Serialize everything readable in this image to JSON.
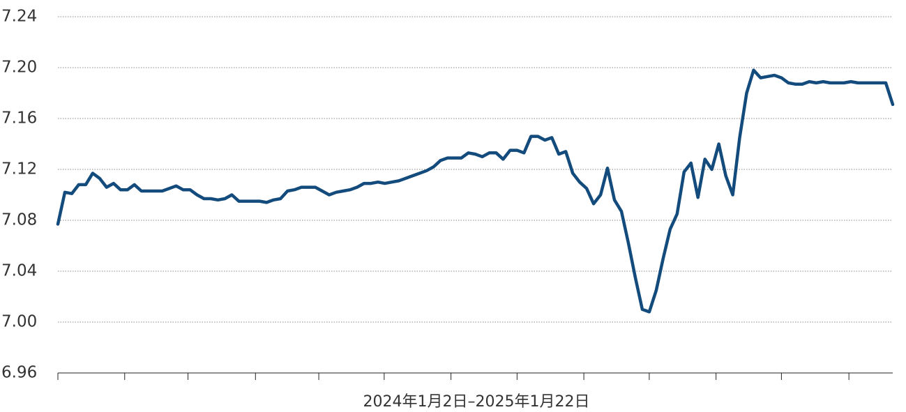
{
  "chart_data": {
    "type": "line",
    "x_label": "2024年1月2日–2025年1月22日",
    "categories": [
      null,
      null,
      null,
      null,
      null,
      null,
      null,
      null,
      null,
      null,
      null,
      null,
      null,
      null,
      null,
      null,
      null,
      null,
      null,
      null,
      null,
      null,
      null,
      null,
      null,
      null,
      null,
      null,
      null,
      null,
      null,
      null,
      null,
      null,
      null,
      null,
      null,
      null,
      null,
      null,
      null,
      null,
      null,
      null,
      null,
      null,
      null,
      null,
      null,
      null,
      null,
      null,
      null,
      null,
      null,
      null,
      null,
      null,
      null,
      null,
      null,
      null,
      null,
      null,
      null,
      null,
      null,
      null,
      null,
      null,
      null,
      null,
      null,
      null,
      null,
      null,
      null,
      null,
      null,
      null,
      null,
      null,
      null,
      null,
      null,
      null,
      null,
      null,
      null,
      null,
      null,
      null,
      null,
      null,
      null,
      null,
      null,
      null,
      null,
      null,
      null,
      null,
      null,
      null,
      null,
      null,
      null,
      null,
      null,
      null,
      null,
      null,
      null,
      null,
      null,
      null,
      null,
      null,
      null,
      null,
      null
    ],
    "series": [
      {
        "name": null,
        "color": "#134b7d",
        "values": [
          7.077,
          7.102,
          7.101,
          7.108,
          7.108,
          7.117,
          7.113,
          7.106,
          7.109,
          7.104,
          7.104,
          7.108,
          7.103,
          7.103,
          7.103,
          7.103,
          7.105,
          7.107,
          7.104,
          7.104,
          7.1,
          7.097,
          7.097,
          7.096,
          7.097,
          7.1,
          7.095,
          7.095,
          7.095,
          7.095,
          7.094,
          7.096,
          7.097,
          7.103,
          7.104,
          7.106,
          7.106,
          7.106,
          7.103,
          7.1,
          7.102,
          7.103,
          7.104,
          7.106,
          7.109,
          7.109,
          7.11,
          7.109,
          7.11,
          7.111,
          7.113,
          7.115,
          7.117,
          7.119,
          7.122,
          7.127,
          7.129,
          7.129,
          7.129,
          7.133,
          7.132,
          7.13,
          7.133,
          7.133,
          7.128,
          7.135,
          7.135,
          7.133,
          7.146,
          7.146,
          7.143,
          7.145,
          7.132,
          7.134,
          7.117,
          7.11,
          7.105,
          7.093,
          7.1,
          7.121,
          7.096,
          7.087,
          7.062,
          7.035,
          7.01,
          7.008,
          7.025,
          7.05,
          7.073,
          7.085,
          7.118,
          7.125,
          7.098,
          7.128,
          7.12,
          7.14,
          7.115,
          7.1,
          7.145,
          7.18,
          7.198,
          7.192,
          7.193,
          7.194,
          7.192,
          7.188,
          7.187,
          7.187,
          7.189,
          7.188,
          7.189,
          7.188,
          7.188,
          7.188,
          7.189,
          7.188,
          7.188,
          7.188,
          7.188,
          7.188,
          7.171
        ]
      }
    ],
    "ylim": [
      6.96,
      7.24
    ],
    "yticks": [
      6.96,
      {
        "value": 7.0,
        "label": "7.00"
      },
      7.04,
      7.08,
      7.12,
      7.16,
      {
        "value": 7.2,
        "label": "7.20"
      },
      7.24
    ],
    "xticks": [
      0,
      9.6,
      18.7,
      28.4,
      37.5,
      46.9,
      56.5,
      66,
      75.6,
      85,
      94.6,
      104,
      113.7
    ],
    "grid": true
  }
}
